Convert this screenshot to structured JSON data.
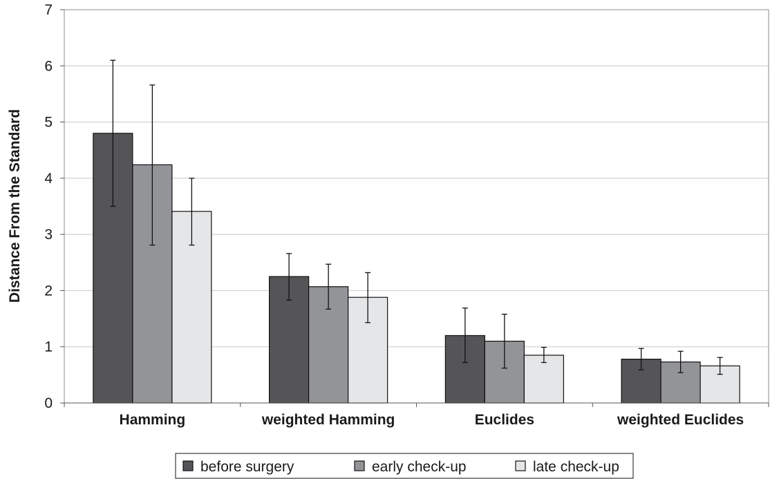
{
  "chart_data": {
    "type": "bar",
    "title": "",
    "xlabel": "",
    "ylabel": "Distance From the Standard",
    "ylim": [
      0,
      7
    ],
    "yticks": [
      0,
      1,
      2,
      3,
      4,
      5,
      6,
      7
    ],
    "grid": true,
    "legend_position": "bottom",
    "categories": [
      "Hamming",
      "weighted Hamming",
      "Euclides",
      "weighted Euclides"
    ],
    "series": [
      {
        "name": "before surgery",
        "color": "#555557",
        "values": [
          4.8,
          2.25,
          1.2,
          0.78
        ],
        "error_low": [
          3.5,
          1.83,
          0.72,
          0.59
        ],
        "error_high": [
          6.1,
          2.66,
          1.69,
          0.97
        ]
      },
      {
        "name": "early check-up",
        "color": "#939497",
        "values": [
          4.24,
          2.07,
          1.1,
          0.73
        ],
        "error_low": [
          2.81,
          1.67,
          0.62,
          0.54
        ],
        "error_high": [
          5.66,
          2.47,
          1.58,
          0.92
        ]
      },
      {
        "name": "late check-up",
        "color": "#e5e6e8",
        "values": [
          3.41,
          1.88,
          0.85,
          0.66
        ],
        "error_low": [
          2.81,
          1.43,
          0.72,
          0.51
        ],
        "error_high": [
          4.0,
          2.32,
          0.99,
          0.81
        ]
      }
    ]
  }
}
